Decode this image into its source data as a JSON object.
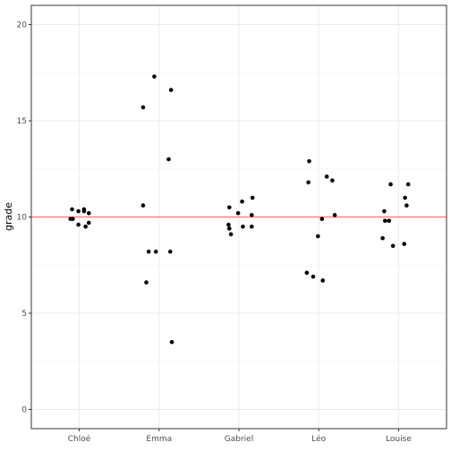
{
  "chart_data": {
    "type": "scatter",
    "title": "",
    "xlabel": "",
    "ylabel": "grade",
    "categories": [
      "Chloé",
      "Emma",
      "Gabriel",
      "Léo",
      "Louise"
    ],
    "ylim": [
      -1,
      21
    ],
    "yticks": [
      0,
      5,
      10,
      15,
      20
    ],
    "grid": true,
    "reference_line": {
      "y": 10,
      "color": "#f8766d"
    },
    "point_color": "#000000",
    "series": [
      {
        "category": "Chloé",
        "points": [
          {
            "x": 0.91,
            "y": 10.4
          },
          {
            "x": 0.89,
            "y": 9.9
          },
          {
            "x": 0.92,
            "y": 9.9
          },
          {
            "x": 0.99,
            "y": 10.3
          },
          {
            "x": 1.06,
            "y": 10.4
          },
          {
            "x": 1.06,
            "y": 10.3
          },
          {
            "x": 1.12,
            "y": 10.2
          },
          {
            "x": 0.99,
            "y": 9.6
          },
          {
            "x": 1.08,
            "y": 9.5
          },
          {
            "x": 1.12,
            "y": 9.7
          }
        ]
      },
      {
        "category": "Emma",
        "points": [
          {
            "x": 1.94,
            "y": 17.3
          },
          {
            "x": 1.8,
            "y": 15.7
          },
          {
            "x": 2.15,
            "y": 16.6
          },
          {
            "x": 2.12,
            "y": 13.0
          },
          {
            "x": 1.8,
            "y": 10.6
          },
          {
            "x": 1.87,
            "y": 8.2
          },
          {
            "x": 1.96,
            "y": 8.2
          },
          {
            "x": 2.14,
            "y": 8.2
          },
          {
            "x": 1.84,
            "y": 6.6
          },
          {
            "x": 2.16,
            "y": 3.5
          }
        ]
      },
      {
        "category": "Gabriel",
        "points": [
          {
            "x": 3.17,
            "y": 11.0
          },
          {
            "x": 3.04,
            "y": 10.8
          },
          {
            "x": 2.88,
            "y": 10.5
          },
          {
            "x": 2.99,
            "y": 10.2
          },
          {
            "x": 3.16,
            "y": 10.1
          },
          {
            "x": 2.87,
            "y": 9.6
          },
          {
            "x": 3.05,
            "y": 9.5
          },
          {
            "x": 2.88,
            "y": 9.4
          },
          {
            "x": 3.16,
            "y": 9.5
          },
          {
            "x": 2.9,
            "y": 9.1
          }
        ]
      },
      {
        "category": "Léo",
        "points": [
          {
            "x": 3.88,
            "y": 12.9
          },
          {
            "x": 4.1,
            "y": 12.1
          },
          {
            "x": 4.17,
            "y": 11.9
          },
          {
            "x": 3.87,
            "y": 11.8
          },
          {
            "x": 4.2,
            "y": 10.1
          },
          {
            "x": 4.04,
            "y": 9.9
          },
          {
            "x": 3.99,
            "y": 9.0
          },
          {
            "x": 3.85,
            "y": 7.1
          },
          {
            "x": 3.93,
            "y": 6.9
          },
          {
            "x": 4.05,
            "y": 6.7
          }
        ]
      },
      {
        "category": "Louise",
        "points": [
          {
            "x": 5.12,
            "y": 11.7
          },
          {
            "x": 4.9,
            "y": 11.7
          },
          {
            "x": 5.08,
            "y": 11.0
          },
          {
            "x": 5.1,
            "y": 10.6
          },
          {
            "x": 4.82,
            "y": 10.3
          },
          {
            "x": 4.88,
            "y": 9.8
          },
          {
            "x": 4.83,
            "y": 9.8
          },
          {
            "x": 4.8,
            "y": 8.9
          },
          {
            "x": 5.07,
            "y": 8.6
          },
          {
            "x": 4.93,
            "y": 8.5
          }
        ]
      }
    ]
  }
}
